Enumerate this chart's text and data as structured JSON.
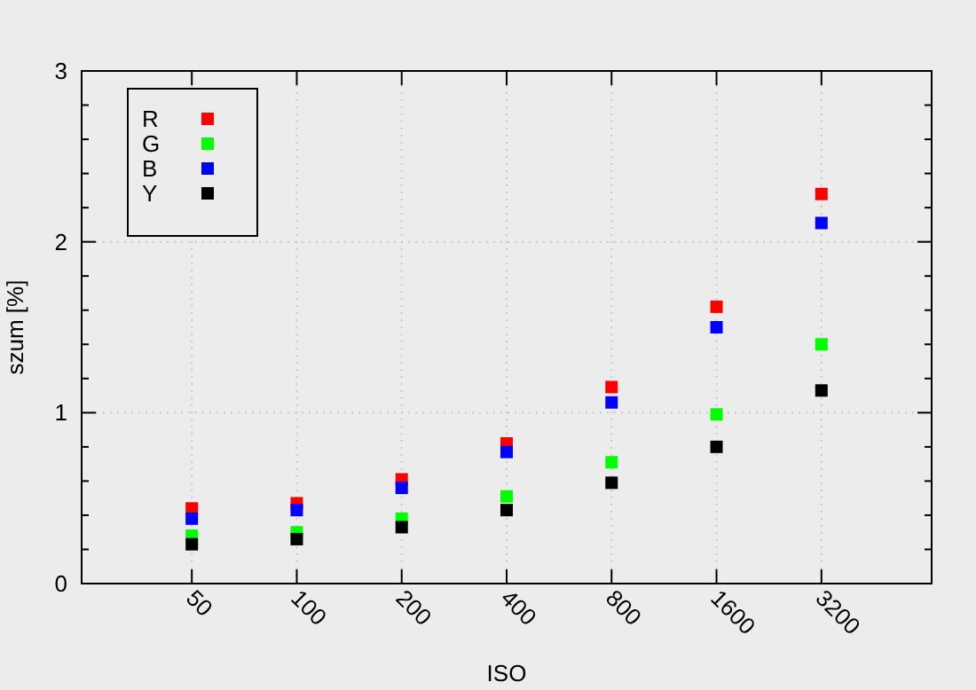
{
  "chart_data": {
    "type": "scatter",
    "xlabel": "ISO",
    "ylabel": "szum [%]",
    "categories": [
      "50",
      "100",
      "200",
      "400",
      "800",
      "1600",
      "3200"
    ],
    "series": [
      {
        "name": "R",
        "color": "#ff0000",
        "values": [
          0.44,
          0.47,
          0.61,
          0.82,
          1.15,
          1.62,
          2.28
        ]
      },
      {
        "name": "G",
        "color": "#00ff00",
        "values": [
          0.28,
          0.3,
          0.38,
          0.51,
          0.71,
          0.99,
          1.4
        ]
      },
      {
        "name": "B",
        "color": "#0000ff",
        "values": [
          0.38,
          0.43,
          0.56,
          0.77,
          1.06,
          1.5,
          2.11
        ]
      },
      {
        "name": "Y",
        "color": "#000000",
        "values": [
          0.23,
          0.26,
          0.33,
          0.43,
          0.59,
          0.8,
          1.13
        ]
      }
    ],
    "ylim": [
      0,
      3
    ],
    "yticks": [
      0,
      {
        "value": 0.2,
        "label": null
      },
      {
        "value": 0.4,
        "label": null
      },
      {
        "value": 0.6,
        "label": null
      },
      {
        "value": 0.8,
        "label": null
      },
      1,
      {
        "value": 1.2,
        "label": null
      },
      {
        "value": 1.4,
        "label": null
      },
      {
        "value": 1.6,
        "label": null
      },
      {
        "value": 1.8,
        "label": null
      },
      2,
      {
        "value": 2.2,
        "label": null
      },
      {
        "value": 2.4,
        "label": null
      },
      {
        "value": 2.6,
        "label": null
      },
      {
        "value": 2.8,
        "label": null
      },
      3
    ],
    "grid": true,
    "legend": "top left",
    "marker": "square"
  }
}
